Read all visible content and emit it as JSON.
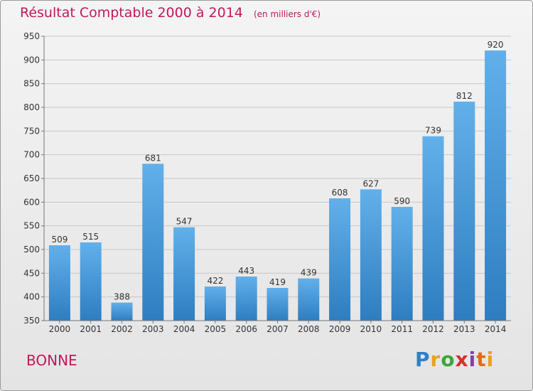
{
  "chart_data": {
    "type": "bar",
    "title": "Résultat Comptable 2000 à 2014",
    "subtitle": "(en milliers d'€)",
    "categories": [
      "2000",
      "2001",
      "2002",
      "2003",
      "2004",
      "2005",
      "2006",
      "2007",
      "2008",
      "2009",
      "2010",
      "2011",
      "2012",
      "2013",
      "2014"
    ],
    "values": [
      509,
      515,
      388,
      681,
      547,
      422,
      443,
      419,
      439,
      608,
      627,
      590,
      739,
      812,
      920
    ],
    "ylim": [
      350,
      950
    ],
    "yticks": [
      350,
      400,
      450,
      500,
      550,
      600,
      650,
      700,
      750,
      800,
      850,
      900,
      950
    ],
    "grid": true,
    "bar_color_light": "#62b0ea",
    "bar_color_dark": "#2e7dc0",
    "grid_color": "#c8c8c8"
  },
  "footer": {
    "commune": "BONNE",
    "logo": "Proxiti"
  }
}
